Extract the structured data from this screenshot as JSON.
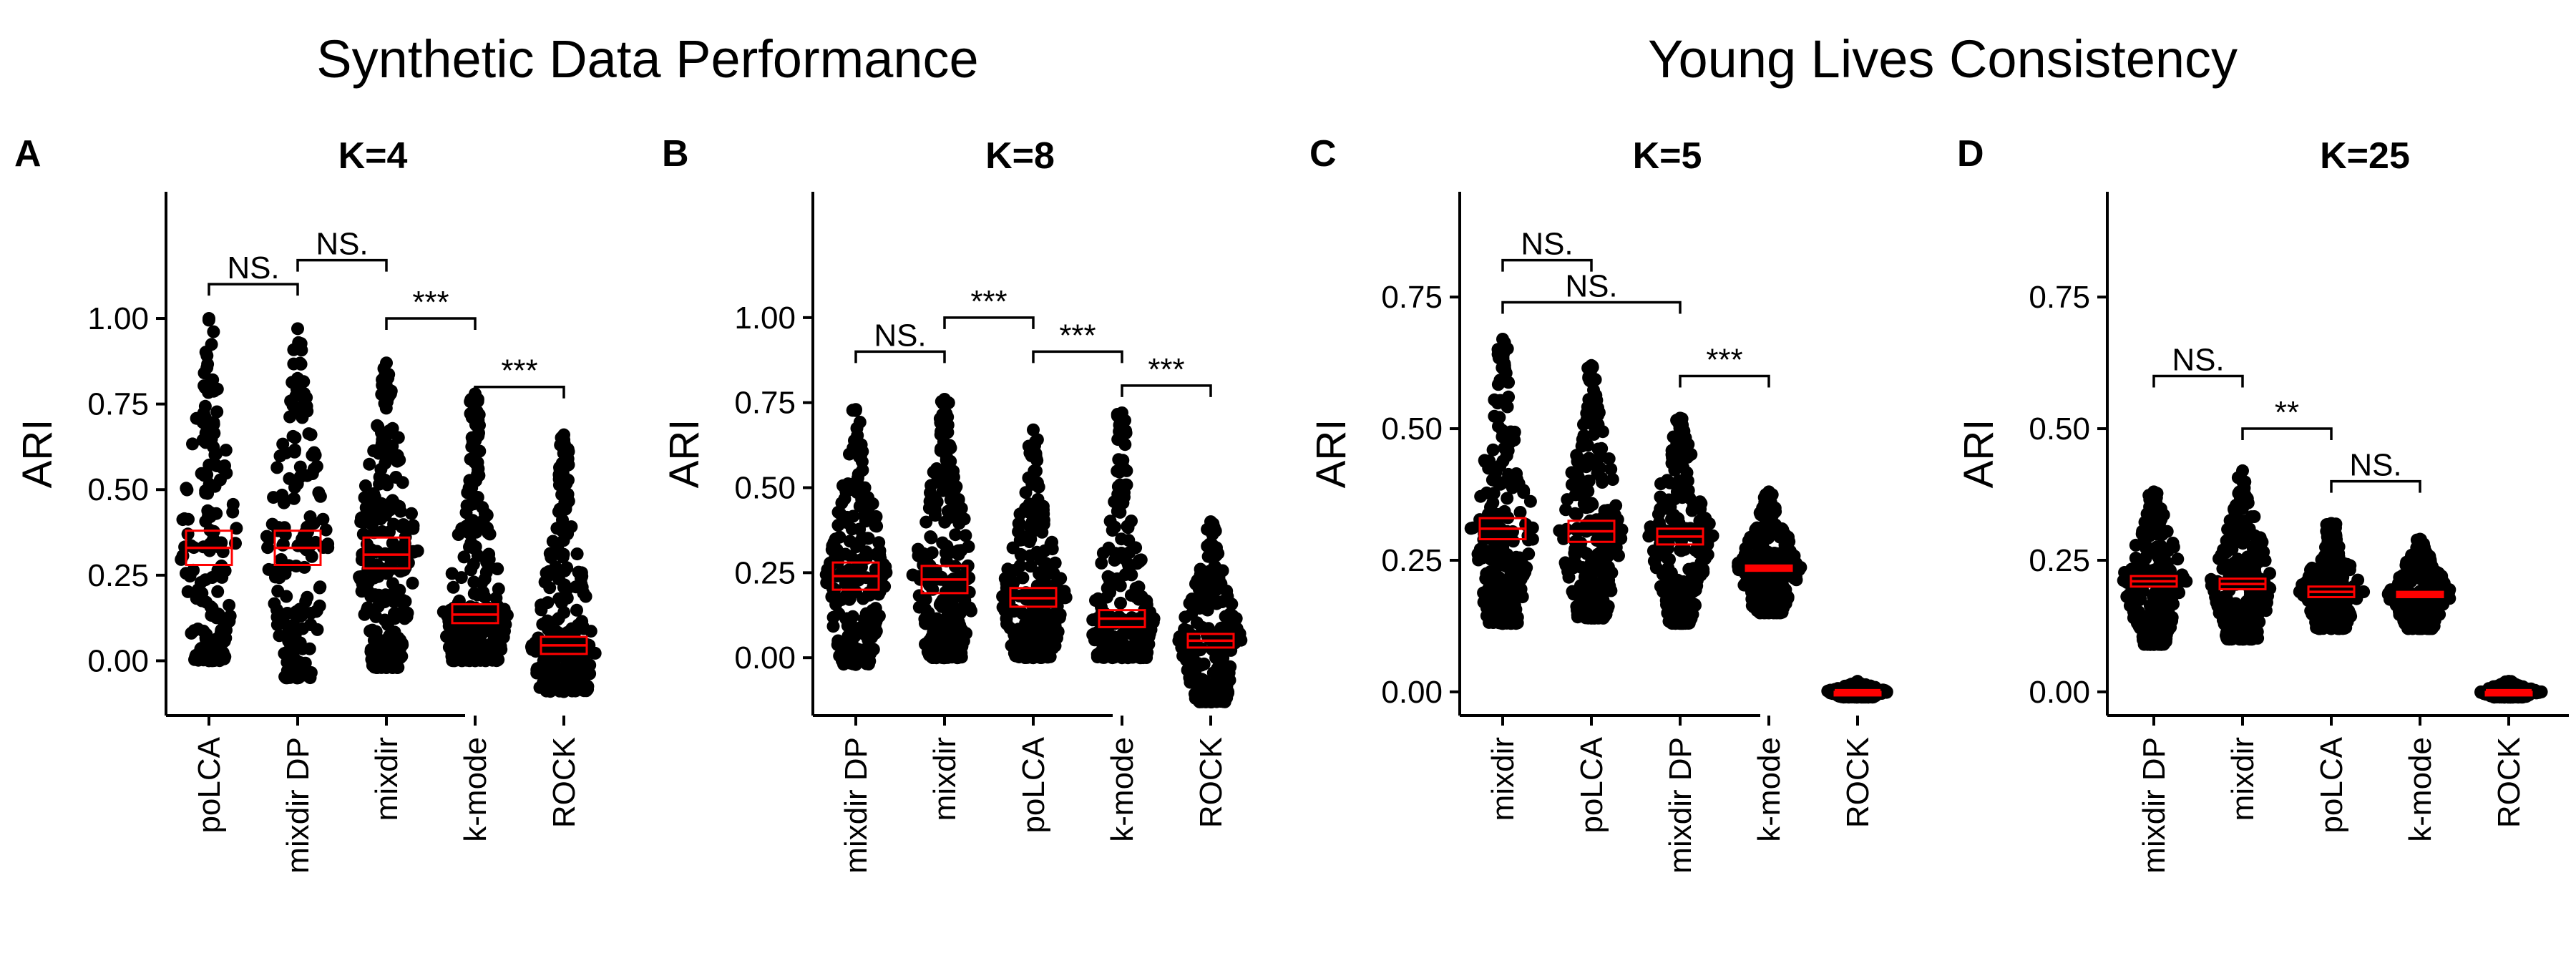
{
  "group_titles": {
    "left": "Synthetic Data Performance",
    "right": "Young Lives Consistency"
  },
  "colors": {
    "points": "#000000",
    "summary": "#ff0000",
    "axis": "#000000"
  },
  "chart_data": [
    {
      "type": "scatter",
      "panel": "A",
      "title": "K=4",
      "ylabel": "ARI",
      "xlabel": "",
      "categories": [
        "poLCA",
        "mixdir DP",
        "mixdir",
        "k-mode",
        "ROCK"
      ],
      "ylim": [
        -0.16,
        1.37
      ],
      "yticks": [
        0.0,
        0.25,
        0.5,
        0.75,
        1.0
      ],
      "ytick_labels": [
        "0.00",
        "0.25",
        "0.50",
        "0.75",
        "1.00"
      ],
      "summary": [
        {
          "mean": 0.33,
          "lower": 0.28,
          "upper": 0.38
        },
        {
          "mean": 0.33,
          "lower": 0.28,
          "upper": 0.38
        },
        {
          "mean": 0.31,
          "lower": 0.27,
          "upper": 0.36
        },
        {
          "mean": 0.135,
          "lower": 0.11,
          "upper": 0.165
        },
        {
          "mean": 0.045,
          "lower": 0.02,
          "upper": 0.07
        }
      ],
      "point_spread": [
        {
          "min": 0.0,
          "max": 1.0
        },
        {
          "min": -0.05,
          "max": 0.97
        },
        {
          "min": -0.02,
          "max": 0.87
        },
        {
          "min": 0.0,
          "max": 0.78
        },
        {
          "min": -0.09,
          "max": 0.66
        }
      ],
      "comparisons": [
        {
          "from": 0,
          "to": 1,
          "y": 1.1,
          "label": "NS."
        },
        {
          "from": 1,
          "to": 2,
          "y": 1.17,
          "label": "NS."
        },
        {
          "from": 2,
          "to": 3,
          "y": 1.0,
          "label": "***"
        },
        {
          "from": 3,
          "to": 4,
          "y": 0.8,
          "label": "***"
        }
      ],
      "grid": false,
      "legend": "none"
    },
    {
      "type": "scatter",
      "panel": "B",
      "title": "K=8",
      "ylabel": "ARI",
      "xlabel": "",
      "categories": [
        "mixdir DP",
        "mixdir",
        "poLCA",
        "k-mode",
        "ROCK"
      ],
      "ylim": [
        -0.17,
        1.37
      ],
      "yticks": [
        0.0,
        0.25,
        0.5,
        0.75,
        1.0
      ],
      "ytick_labels": [
        "0.00",
        "0.25",
        "0.50",
        "0.75",
        "1.00"
      ],
      "summary": [
        {
          "mean": 0.24,
          "lower": 0.2,
          "upper": 0.28
        },
        {
          "mean": 0.23,
          "lower": 0.19,
          "upper": 0.27
        },
        {
          "mean": 0.175,
          "lower": 0.15,
          "upper": 0.205
        },
        {
          "mean": 0.115,
          "lower": 0.09,
          "upper": 0.14
        },
        {
          "mean": 0.05,
          "lower": 0.03,
          "upper": 0.07
        }
      ],
      "point_spread": [
        {
          "min": -0.02,
          "max": 0.73
        },
        {
          "min": 0.0,
          "max": 0.76
        },
        {
          "min": 0.0,
          "max": 0.67
        },
        {
          "min": 0.0,
          "max": 0.72
        },
        {
          "min": -0.13,
          "max": 0.4
        }
      ],
      "comparisons": [
        {
          "from": 0,
          "to": 1,
          "y": 0.9,
          "label": "NS."
        },
        {
          "from": 1,
          "to": 2,
          "y": 1.0,
          "label": "***"
        },
        {
          "from": 2,
          "to": 3,
          "y": 0.9,
          "label": "***"
        },
        {
          "from": 3,
          "to": 4,
          "y": 0.8,
          "label": "***"
        }
      ],
      "grid": false,
      "legend": "none"
    },
    {
      "type": "scatter",
      "panel": "C",
      "title": "K=5",
      "ylabel": "ARI",
      "xlabel": "",
      "categories": [
        "mixdir",
        "poLCA",
        "mixdir DP",
        "k-mode",
        "ROCK"
      ],
      "ylim": [
        -0.045,
        0.95
      ],
      "yticks": [
        0.0,
        0.25,
        0.5,
        0.75
      ],
      "ytick_labels": [
        "0.00",
        "0.25",
        "0.50",
        "0.75"
      ],
      "summary": [
        {
          "mean": 0.31,
          "lower": 0.29,
          "upper": 0.33
        },
        {
          "mean": 0.305,
          "lower": 0.285,
          "upper": 0.325
        },
        {
          "mean": 0.295,
          "lower": 0.28,
          "upper": 0.31
        },
        {
          "mean": 0.235,
          "lower": 0.23,
          "upper": 0.24
        },
        {
          "mean": 0.0,
          "lower": 0.0,
          "upper": 0.0
        }
      ],
      "point_spread": [
        {
          "min": 0.13,
          "max": 0.67
        },
        {
          "min": 0.14,
          "max": 0.62
        },
        {
          "min": 0.13,
          "max": 0.52
        },
        {
          "min": 0.15,
          "max": 0.38
        },
        {
          "min": -0.01,
          "max": 0.02
        }
      ],
      "comparisons": [
        {
          "from": 0,
          "to": 1,
          "y": 0.82,
          "label": "NS."
        },
        {
          "from": 0,
          "to": 2,
          "y": 0.74,
          "label": "NS."
        },
        {
          "from": 2,
          "to": 3,
          "y": 0.6,
          "label": "***"
        }
      ],
      "grid": false,
      "legend": "none"
    },
    {
      "type": "scatter",
      "panel": "D",
      "title": "K=25",
      "ylabel": "ARI",
      "xlabel": "",
      "categories": [
        "mixdir DP",
        "mixdir",
        "poLCA",
        "k-mode",
        "ROCK"
      ],
      "ylim": [
        -0.045,
        0.95
      ],
      "yticks": [
        0.0,
        0.25,
        0.5,
        0.75
      ],
      "ytick_labels": [
        "0.00",
        "0.25",
        "0.50",
        "0.75"
      ],
      "summary": [
        {
          "mean": 0.21,
          "lower": 0.2,
          "upper": 0.22
        },
        {
          "mean": 0.205,
          "lower": 0.195,
          "upper": 0.215
        },
        {
          "mean": 0.19,
          "lower": 0.18,
          "upper": 0.2
        },
        {
          "mean": 0.185,
          "lower": 0.18,
          "upper": 0.19
        },
        {
          "mean": 0.0,
          "lower": 0.0,
          "upper": 0.0
        }
      ],
      "point_spread": [
        {
          "min": 0.09,
          "max": 0.38
        },
        {
          "min": 0.1,
          "max": 0.42
        },
        {
          "min": 0.12,
          "max": 0.32
        },
        {
          "min": 0.12,
          "max": 0.29
        },
        {
          "min": -0.01,
          "max": 0.02
        }
      ],
      "comparisons": [
        {
          "from": 0,
          "to": 1,
          "y": 0.6,
          "label": "NS."
        },
        {
          "from": 1,
          "to": 2,
          "y": 0.5,
          "label": "**"
        },
        {
          "from": 2,
          "to": 3,
          "y": 0.4,
          "label": "NS."
        }
      ],
      "grid": false,
      "legend": "none"
    }
  ]
}
